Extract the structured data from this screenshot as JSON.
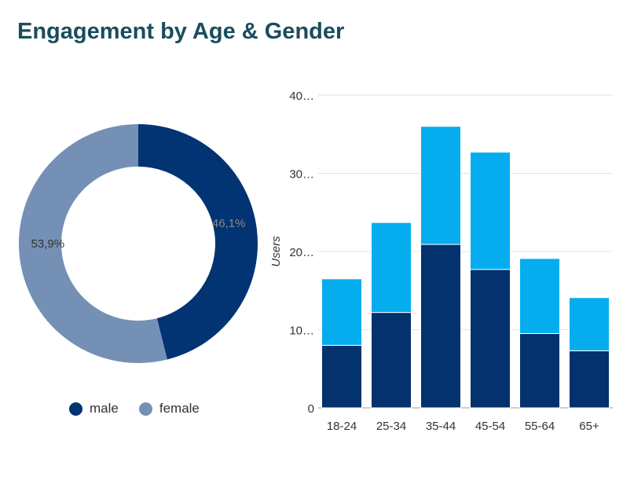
{
  "title": "Engagement by Age & Gender",
  "colors": {
    "male": "#023373",
    "female": "#7590b5",
    "bar_dark": "#03326f",
    "bar_light": "#05adef",
    "title": "#1a4d5c"
  },
  "legend": [
    {
      "label": "male",
      "color": "#023373"
    },
    {
      "label": "female",
      "color": "#7590b5"
    }
  ],
  "chart_data": [
    {
      "type": "pie",
      "style": "donut",
      "labels": [
        "male",
        "female"
      ],
      "values": [
        46.1,
        53.9
      ],
      "value_labels": [
        "46,1%",
        "53,9%"
      ],
      "legend_position": "bottom"
    },
    {
      "type": "bar",
      "stacked": true,
      "categories": [
        "18-24",
        "25-34",
        "35-44",
        "45-54",
        "55-64",
        "65+"
      ],
      "series": [
        {
          "values": [
            8,
            12.2,
            20.9,
            17.7,
            9.5,
            7.3
          ]
        },
        {
          "values": [
            8.5,
            11.5,
            15.1,
            15.0,
            9.6,
            6.8
          ]
        }
      ],
      "ylabel": "Users",
      "ylim": [
        0,
        40
      ],
      "yticks": [
        "0",
        "10…",
        "20…",
        "30…",
        "40…"
      ],
      "ytick_values": [
        0,
        10,
        20,
        30,
        40
      ],
      "grid": true
    }
  ]
}
